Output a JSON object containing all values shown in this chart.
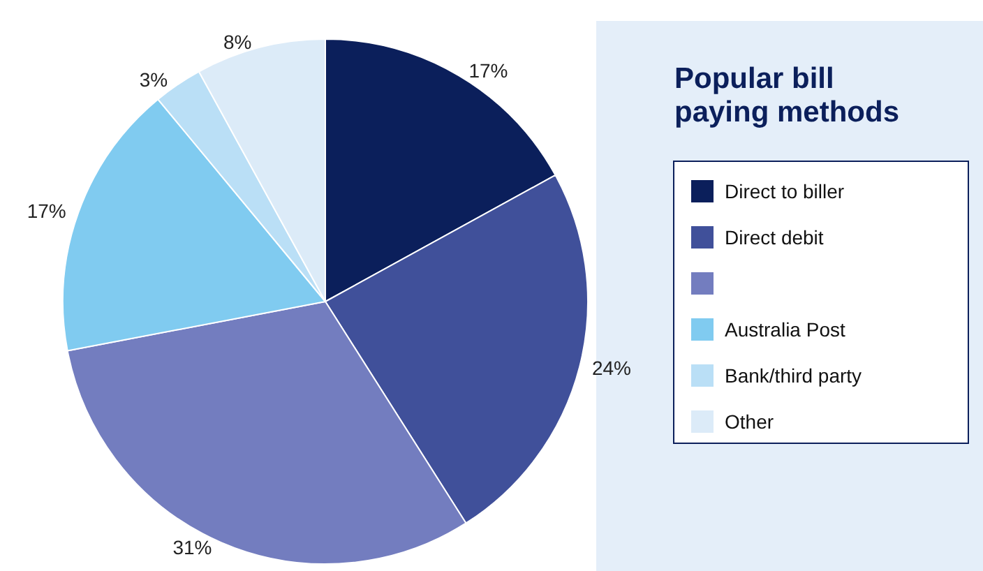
{
  "chart_data": {
    "type": "pie",
    "title": "Popular bill paying methods",
    "categories": [
      "Direct to biller",
      "Direct debit",
      null,
      "Australia Post",
      "Bank/third party",
      "Other"
    ],
    "values": [
      17,
      24,
      31,
      17,
      3,
      8
    ],
    "value_labels": [
      "17%",
      "24%",
      "31%",
      "17%",
      "3%",
      "8%"
    ],
    "colors": [
      "#0b1f5b",
      "#40509a",
      "#737dbf",
      "#80cbf0",
      "#badff6",
      "#dcebf8"
    ],
    "legend": "right"
  }
}
